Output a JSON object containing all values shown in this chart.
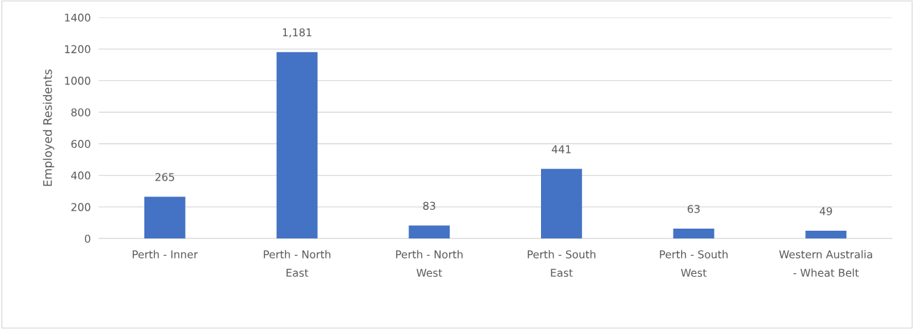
{
  "chart_data": {
    "type": "bar",
    "ylabel": "Employed Residents",
    "categories": [
      "Perth - Inner",
      "Perth - North\nEast",
      "Perth - North\nWest",
      "Perth - South\nEast",
      "Perth - South\nWest",
      "Western Australia\n- Wheat Belt"
    ],
    "values": [
      265,
      1181,
      83,
      441,
      63,
      49
    ],
    "value_labels": [
      "265",
      "1,181",
      "83",
      "441",
      "63",
      "49"
    ],
    "color": "#4472c4",
    "ylim": [
      0,
      1400
    ],
    "yticks": [
      0,
      200,
      400,
      600,
      800,
      1000,
      1200,
      1400
    ],
    "grid": "y",
    "legend": false
  }
}
